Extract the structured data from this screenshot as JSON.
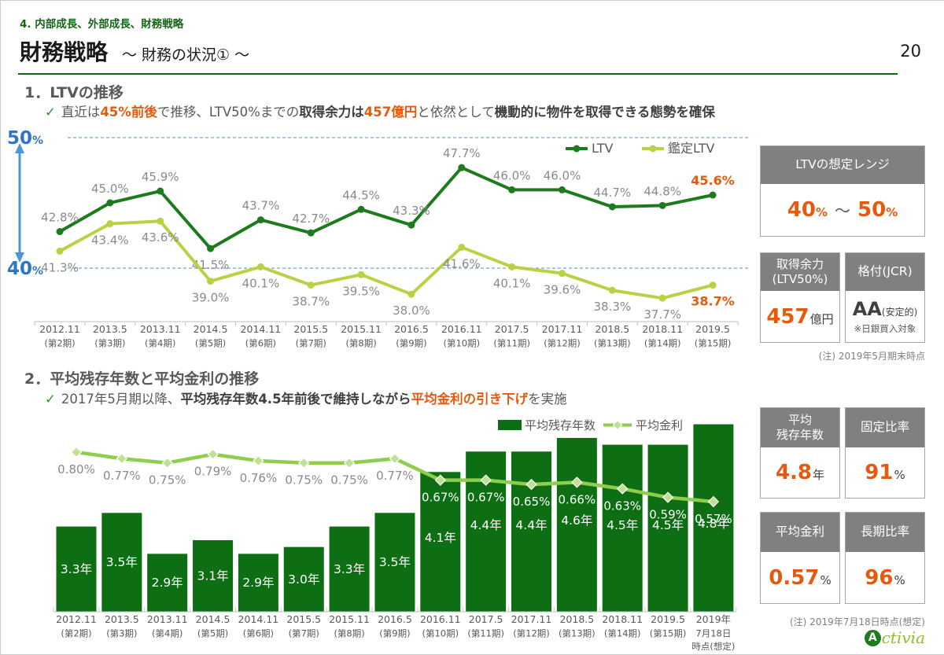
{
  "page": {
    "section_label": "4. 内部成長、外部成長、財務戦略",
    "title": "財務戦略",
    "subtitle": "～ 財務の状況① ～",
    "page_number": "20"
  },
  "section1": {
    "heading": "1．LTVの推移",
    "check": "✓",
    "bullet_segments": [
      {
        "t": "直近は",
        "s": "normal"
      },
      {
        "t": "45%前後",
        "s": "orange"
      },
      {
        "t": "で推移、LTV50%までの",
        "s": "normal"
      },
      {
        "t": "取得余力は",
        "s": "bold"
      },
      {
        "t": "457億円",
        "s": "orange"
      },
      {
        "t": "と依然として",
        "s": "normal"
      },
      {
        "t": "機動的に物件を取得できる態勢を確保",
        "s": "bold"
      }
    ]
  },
  "section2": {
    "heading": "2．平均残存年数と平均金利の推移",
    "check": "✓",
    "bullet_segments": [
      {
        "t": "2017年5月期以降、",
        "s": "normal"
      },
      {
        "t": "平均残存年数4.5年前後で維持しながら",
        "s": "bold"
      },
      {
        "t": "平均金利の引き下げ",
        "s": "orange"
      },
      {
        "t": "を実施",
        "s": "normal"
      }
    ]
  },
  "chart_data": [
    {
      "type": "line",
      "title": "LTVの推移",
      "categories": [
        [
          "2012.11",
          "(第2期)"
        ],
        [
          "2013.5",
          "(第3期)"
        ],
        [
          "2013.11",
          "(第4期)"
        ],
        [
          "2014.5",
          "(第5期)"
        ],
        [
          "2014.11",
          "(第6期)"
        ],
        [
          "2015.5",
          "(第7期)"
        ],
        [
          "2015.11",
          "(第8期)"
        ],
        [
          "2016.5",
          "(第9期)"
        ],
        [
          "2016.11",
          "(第10期)"
        ],
        [
          "2017.5",
          "(第11期)"
        ],
        [
          "2017.11",
          "(第12期)"
        ],
        [
          "2018.5",
          "(第13期)"
        ],
        [
          "2018.11",
          "(第14期)"
        ],
        [
          "2019.5",
          "(第15期)"
        ]
      ],
      "series": [
        {
          "name": "LTV",
          "values": [
            42.8,
            45.0,
            45.9,
            41.5,
            43.7,
            42.7,
            44.5,
            43.3,
            47.7,
            46.0,
            46.0,
            44.7,
            44.8,
            45.6
          ],
          "color": "#1d7a1d"
        },
        {
          "name": "鑑定LTV",
          "values": [
            41.3,
            43.4,
            43.6,
            39.0,
            40.1,
            38.7,
            39.5,
            38.0,
            41.6,
            40.1,
            39.6,
            38.3,
            37.7,
            38.7
          ],
          "color": "#b8d145"
        }
      ],
      "unit": "%",
      "ylim": [
        36,
        51
      ],
      "gridlines": [
        {
          "value": 50,
          "label": "50",
          "unit": "%"
        },
        {
          "value": 40,
          "label": "40",
          "unit": "%"
        }
      ],
      "legend_position": "top-right",
      "grid_color": "#6fa8dc",
      "annotation_color": "#2e74c9",
      "last_label_color": "#e55a0e"
    },
    {
      "type": "bar",
      "title": "平均残存年数と平均金利の推移",
      "categories": [
        [
          "2012.11",
          "(第2期)"
        ],
        [
          "2013.5",
          "(第3期)"
        ],
        [
          "2013.11",
          "(第4期)"
        ],
        [
          "2014.5",
          "(第5期)"
        ],
        [
          "2014.11",
          "(第6期)"
        ],
        [
          "2015.5",
          "(第7期)"
        ],
        [
          "2015.11",
          "(第8期)"
        ],
        [
          "2016.5",
          "(第9期)"
        ],
        [
          "2016.11",
          "(第10期)"
        ],
        [
          "2017.5",
          "(第11期)"
        ],
        [
          "2017.11",
          "(第12期)"
        ],
        [
          "2018.5",
          "(第13期)"
        ],
        [
          "2018.11",
          "(第14期)"
        ],
        [
          "2019.5",
          "(第15期)"
        ],
        [
          "2019年",
          "7月18日",
          "時点(想定)"
        ]
      ],
      "series": [
        {
          "name": "平均残存年数",
          "type": "bar",
          "unit": "年",
          "values": [
            3.3,
            3.5,
            2.9,
            3.1,
            2.9,
            3.0,
            3.3,
            3.5,
            4.1,
            4.4,
            4.4,
            4.6,
            4.5,
            4.5,
            4.8
          ],
          "color": "#0d6e14"
        },
        {
          "name": "平均金利",
          "type": "line",
          "unit": "%",
          "values": [
            0.8,
            0.77,
            0.75,
            0.79,
            0.76,
            0.75,
            0.75,
            0.77,
            0.67,
            0.67,
            0.65,
            0.66,
            0.63,
            0.59,
            0.57
          ],
          "color": "#8fcd4f"
        }
      ],
      "legend_position": "top",
      "label_color_outside": "#8a8a8a",
      "label_color_inside": "#ffffff"
    }
  ],
  "panels": {
    "ltv_range": {
      "header": "LTVの想定レンジ",
      "min": "40",
      "max": "50",
      "unit": "%",
      "tilde": "～"
    },
    "capacity": {
      "header_l1": "取得余力",
      "header_l2": "(LTV50%)",
      "value": "457",
      "unit": "億円"
    },
    "rating": {
      "header": "格付(JCR)",
      "value": "AA",
      "qualifier": "(安定的)",
      "note": "※日銀買入対象"
    },
    "note1": "(注) 2019年5月期末時点",
    "avg_years": {
      "header_l1": "平均",
      "header_l2": "残存年数",
      "value": "4.8",
      "unit": "年"
    },
    "fixed_ratio": {
      "header": "固定比率",
      "value": "91",
      "unit": "%"
    },
    "avg_rate": {
      "header": "平均金利",
      "value": "0.57",
      "unit": "%"
    },
    "long_ratio": {
      "header": "長期比率",
      "value": "96",
      "unit": "%"
    },
    "note2": "(注) 2019年7月18日時点(想定)"
  },
  "logo": {
    "initial": "A",
    "rest": "ctivia"
  }
}
